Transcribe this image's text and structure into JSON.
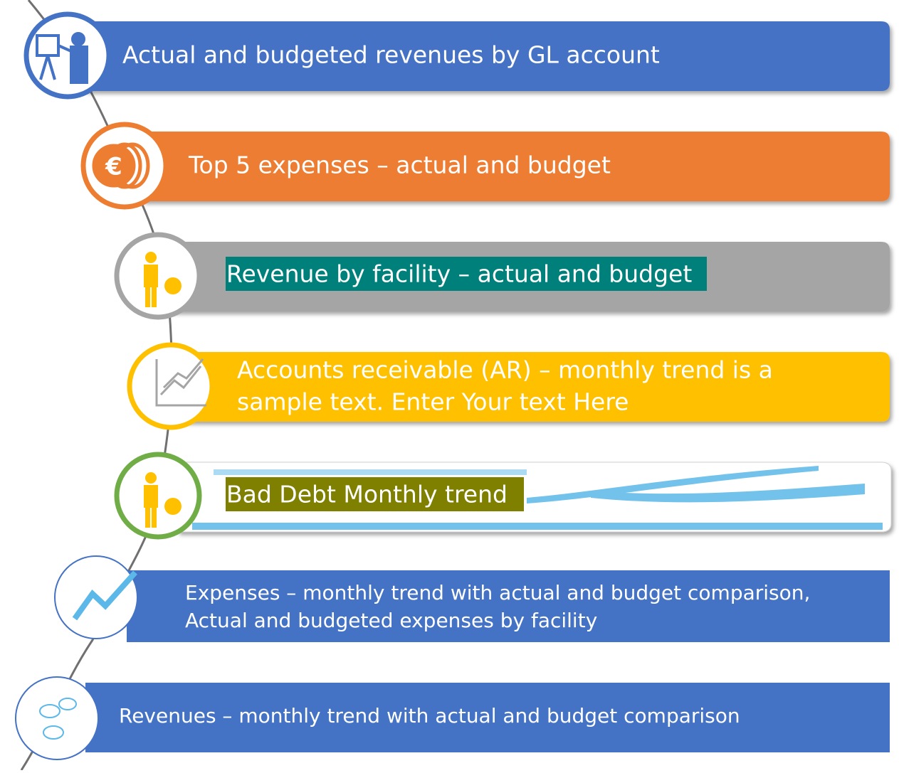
{
  "items": [
    {
      "lines": [
        "Actual and budgeted revenues by GL account"
      ]
    },
    {
      "lines": [
        "Top 5 expenses – actual and budget"
      ]
    },
    {
      "lines": [
        "Revenue by facility – actual and budget"
      ]
    },
    {
      "lines": [
        "Accounts receivable (AR) – monthly trend is a",
        "sample text. Enter Your text Here"
      ]
    },
    {
      "lines": [
        "Bad Debt Monthly trend"
      ]
    },
    {
      "lines": [
        "Expenses – monthly trend with actual and budget comparison,",
        "Actual and budgeted expenses by facility"
      ]
    },
    {
      "lines": [
        "Revenues – monthly trend with actual and budget comparison"
      ]
    }
  ]
}
